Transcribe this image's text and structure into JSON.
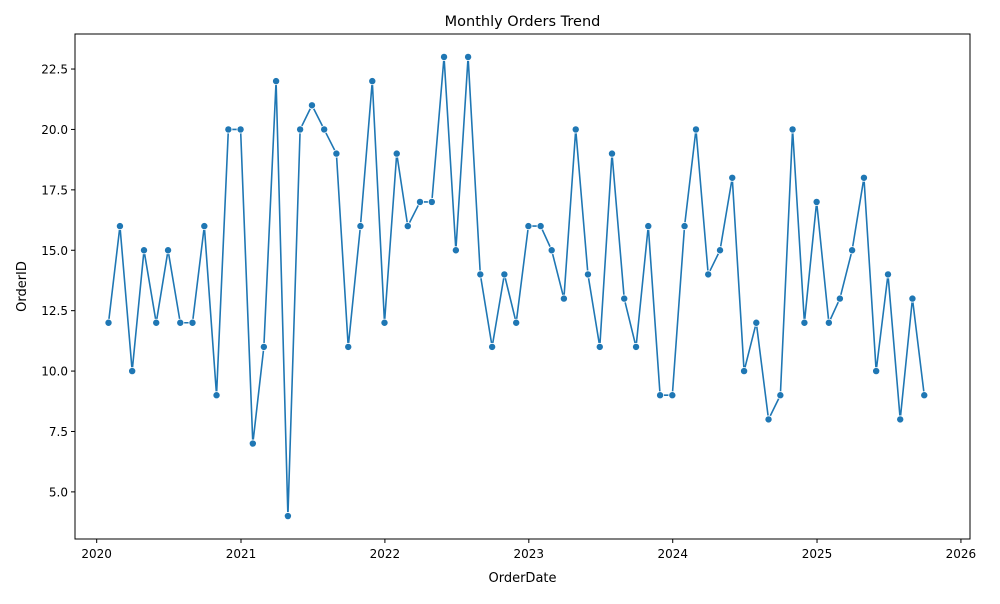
{
  "chart_data": {
    "type": "line",
    "title": "Monthly Orders Trend",
    "xlabel": "OrderDate",
    "ylabel": "OrderID",
    "xlim": [
      "2019-11-07",
      "2026-01-24"
    ],
    "ylim": [
      3.05,
      23.95
    ],
    "x_ticks": [
      "2020-01-01",
      "2021-01-01",
      "2022-01-01",
      "2023-01-01",
      "2024-01-01",
      "2025-01-01",
      "2026-01-01"
    ],
    "x_tick_labels": [
      "2020",
      "2021",
      "2022",
      "2023",
      "2024",
      "2025",
      "2026"
    ],
    "y_ticks": [
      5.0,
      7.5,
      10.0,
      12.5,
      15.0,
      17.5,
      20.0,
      22.5
    ],
    "y_tick_labels": [
      "5.0",
      "7.5",
      "10.0",
      "12.5",
      "15.0",
      "17.5",
      "20.0",
      "22.5"
    ],
    "grid": false,
    "color": "#1f77b4",
    "series": [
      {
        "marker": "circle",
        "x": [
          "2020-01-31",
          "2020-02-29",
          "2020-03-31",
          "2020-04-30",
          "2020-05-31",
          "2020-06-30",
          "2020-07-31",
          "2020-08-31",
          "2020-09-30",
          "2020-10-31",
          "2020-11-30",
          "2020-12-31",
          "2021-01-31",
          "2021-02-28",
          "2021-03-31",
          "2021-04-30",
          "2021-05-31",
          "2021-06-30",
          "2021-07-31",
          "2021-08-31",
          "2021-09-30",
          "2021-10-31",
          "2021-11-30",
          "2021-12-31",
          "2022-01-31",
          "2022-02-28",
          "2022-03-31",
          "2022-04-30",
          "2022-05-31",
          "2022-06-30",
          "2022-07-31",
          "2022-08-31",
          "2022-09-30",
          "2022-10-31",
          "2022-11-30",
          "2022-12-31",
          "2023-01-31",
          "2023-02-28",
          "2023-03-31",
          "2023-04-30",
          "2023-05-31",
          "2023-06-30",
          "2023-07-31",
          "2023-08-31",
          "2023-09-30",
          "2023-10-31",
          "2023-11-30",
          "2023-12-31",
          "2024-01-31",
          "2024-02-29",
          "2024-03-31",
          "2024-04-30",
          "2024-05-31",
          "2024-06-30",
          "2024-07-31",
          "2024-08-31",
          "2024-09-30",
          "2024-10-31",
          "2024-11-30",
          "2024-12-31",
          "2025-01-31",
          "2025-02-28",
          "2025-03-31",
          "2025-04-30",
          "2025-05-31",
          "2025-06-30",
          "2025-07-31",
          "2025-08-31",
          "2025-09-30"
        ],
        "y": [
          12,
          16,
          10,
          15,
          12,
          15,
          12,
          12,
          16,
          9,
          20,
          20,
          7,
          11,
          22,
          4,
          20,
          21,
          20,
          19,
          11,
          16,
          22,
          12,
          19,
          16,
          17,
          17,
          23,
          15,
          23,
          14,
          11,
          14,
          12,
          16,
          16,
          15,
          13,
          20,
          14,
          11,
          19,
          13,
          11,
          16,
          9,
          9,
          16,
          20,
          14,
          15,
          18,
          10,
          12,
          8,
          9,
          20,
          12,
          17,
          12,
          13,
          15,
          18,
          10,
          14,
          8,
          13,
          9
        ]
      }
    ]
  }
}
